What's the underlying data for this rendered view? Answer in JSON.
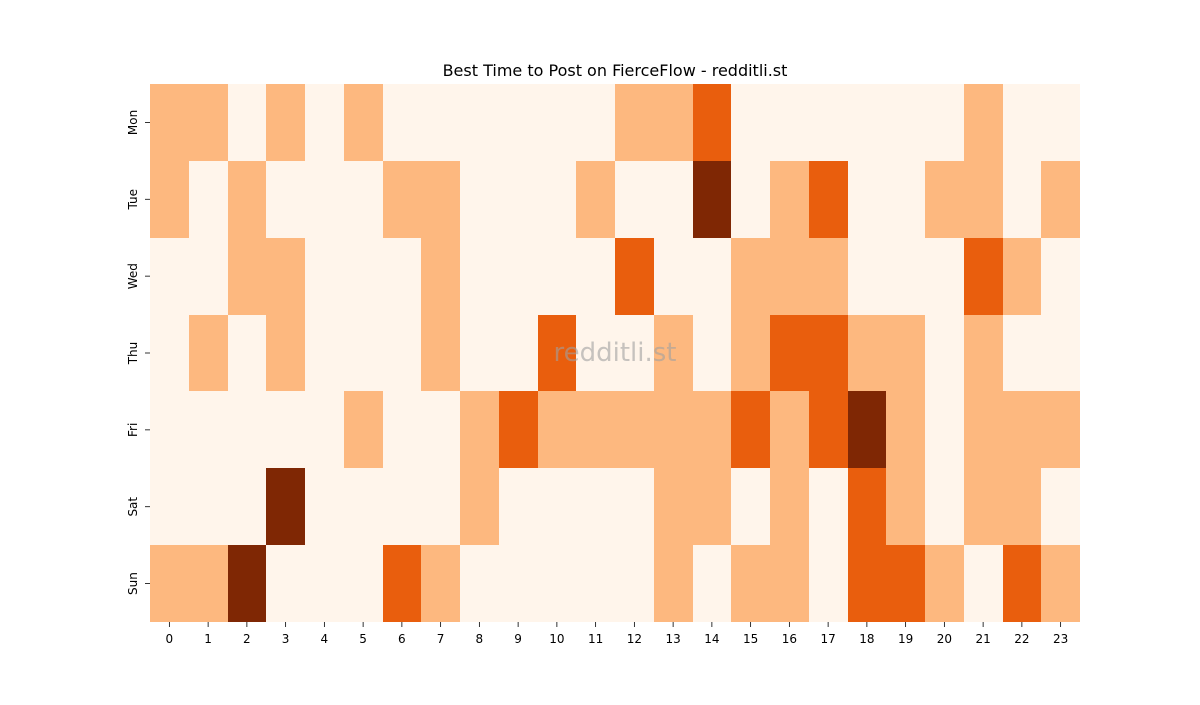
{
  "chart_data": {
    "type": "heatmap",
    "title": "Best Time to Post on FierceFlow - redditli.st",
    "xlabel": "",
    "ylabel": "",
    "x_categories": [
      "0",
      "1",
      "2",
      "3",
      "4",
      "5",
      "6",
      "7",
      "8",
      "9",
      "10",
      "11",
      "12",
      "13",
      "14",
      "15",
      "16",
      "17",
      "18",
      "19",
      "20",
      "21",
      "22",
      "23"
    ],
    "y_categories": [
      "Mon",
      "Tue",
      "Wed",
      "Thu",
      "Fri",
      "Sat",
      "Sun"
    ],
    "values": [
      [
        1,
        1,
        0,
        1,
        0,
        1,
        0,
        0,
        0,
        0,
        0,
        0,
        1,
        1,
        2,
        0,
        0,
        0,
        0,
        0,
        0,
        1,
        0,
        0
      ],
      [
        1,
        0,
        1,
        0,
        0,
        0,
        1,
        1,
        0,
        0,
        0,
        1,
        0,
        0,
        3,
        0,
        1,
        2,
        0,
        0,
        1,
        1,
        0,
        1
      ],
      [
        0,
        0,
        1,
        1,
        0,
        0,
        0,
        1,
        0,
        0,
        0,
        0,
        2,
        0,
        0,
        1,
        1,
        1,
        0,
        0,
        0,
        2,
        1,
        0
      ],
      [
        0,
        1,
        0,
        1,
        0,
        0,
        0,
        1,
        0,
        0,
        2,
        0,
        0,
        1,
        0,
        1,
        2,
        2,
        1,
        1,
        0,
        1,
        0,
        0
      ],
      [
        0,
        0,
        0,
        0,
        0,
        1,
        0,
        0,
        1,
        2,
        1,
        1,
        1,
        1,
        1,
        2,
        1,
        2,
        3,
        1,
        0,
        1,
        1,
        1
      ],
      [
        0,
        0,
        0,
        3,
        0,
        0,
        0,
        0,
        1,
        0,
        0,
        0,
        0,
        1,
        1,
        0,
        1,
        0,
        2,
        1,
        0,
        1,
        1,
        0
      ],
      [
        1,
        1,
        3,
        0,
        0,
        0,
        2,
        1,
        0,
        0,
        0,
        0,
        0,
        1,
        0,
        1,
        1,
        0,
        2,
        2,
        1,
        0,
        2,
        1
      ]
    ],
    "value_range": [
      0,
      3
    ],
    "colormap": [
      "#fff5eb",
      "#fdb87f",
      "#e95e0d",
      "#7f2704"
    ],
    "colorbar": false,
    "grid": false,
    "watermark": "redditli.st"
  }
}
